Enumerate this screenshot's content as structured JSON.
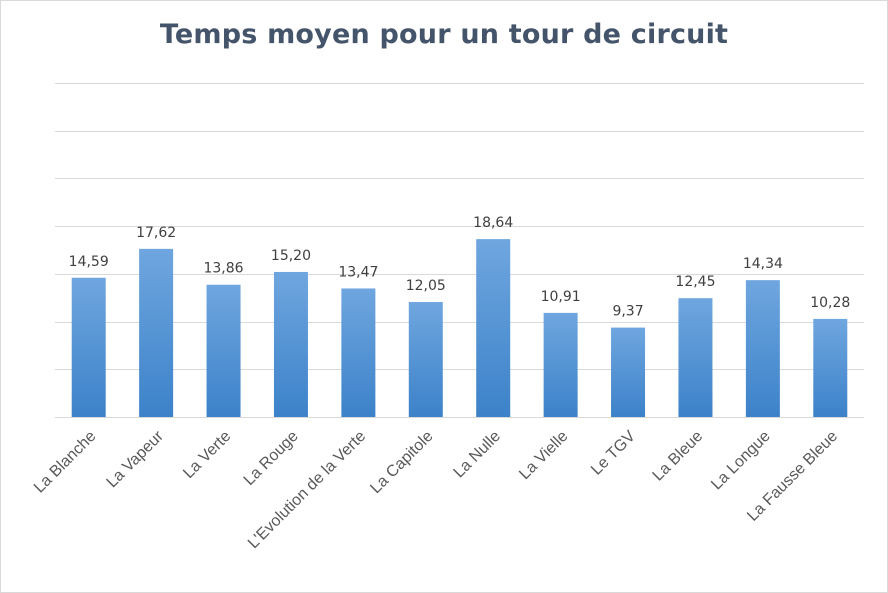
{
  "chart_data": {
    "type": "bar",
    "title": "Temps moyen pour un tour de circuit",
    "xlabel": "",
    "ylabel": "",
    "categories": [
      "La Blanche",
      "La Vapeur",
      "La Verte",
      "La Rouge",
      "L'Evolution de la Verte",
      "La Capitole",
      "La Nulle",
      "La Vielle",
      "Le TGV",
      "La Bleue",
      "La Longue",
      "La Fausse Bleue"
    ],
    "values": [
      14.59,
      17.62,
      13.86,
      15.2,
      13.47,
      12.05,
      18.64,
      10.91,
      9.37,
      12.45,
      14.34,
      10.28
    ],
    "value_labels": [
      "14,59",
      "17,62",
      "13,86",
      "15,20",
      "13,47",
      "12,05",
      "18,64",
      "10,91",
      "9,37",
      "12,45",
      "14,34",
      "10,28"
    ],
    "ylim": [
      0,
      35
    ],
    "grid": true,
    "legend": "none",
    "colors": {
      "bar_top": "#6fa6df",
      "bar_bottom": "#3c82c9",
      "title": "#44546a"
    }
  }
}
